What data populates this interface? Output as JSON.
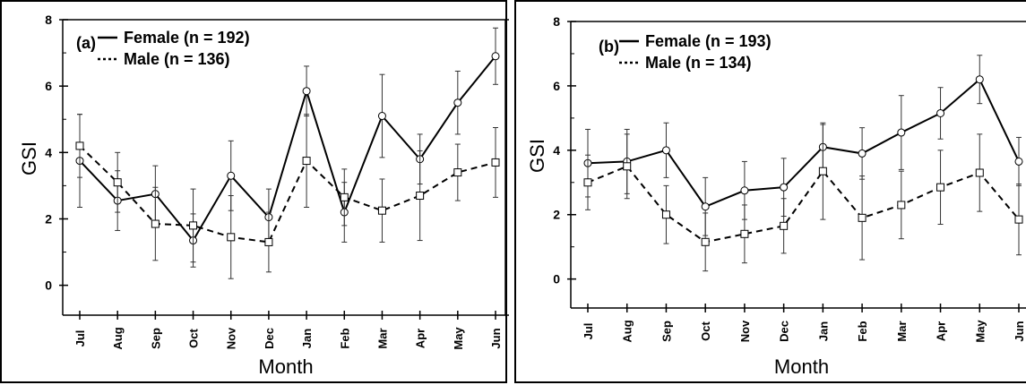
{
  "chart_data": [
    {
      "type": "line",
      "panel_label": "(a)",
      "xlabel": "Month",
      "ylabel": "GSI",
      "ylim": [
        -0.9,
        8
      ],
      "yticks": [
        0,
        2,
        4,
        6,
        8
      ],
      "categories": [
        "Jul",
        "Aug",
        "Sep",
        "Oct",
        "Nov",
        "Dec",
        "Jan",
        "Feb",
        "Mar",
        "Apr",
        "May",
        "Jun"
      ],
      "series": [
        {
          "name": "Female (n = 192)",
          "line_style": "solid",
          "marker": "circle",
          "values": [
            3.75,
            2.55,
            2.75,
            1.35,
            3.3,
            2.05,
            5.85,
            2.2,
            5.1,
            3.8,
            5.5,
            6.9
          ],
          "error": [
            1.4,
            0.9,
            0.85,
            0.8,
            1.05,
            0.85,
            0.75,
            0.9,
            1.25,
            0.75,
            0.95,
            0.85
          ]
        },
        {
          "name": "Male (n = 136)",
          "line_style": "dashed",
          "marker": "square",
          "values": [
            4.2,
            3.1,
            1.85,
            1.8,
            1.45,
            1.3,
            3.75,
            2.65,
            2.25,
            2.7,
            3.4,
            3.7
          ],
          "error": [
            0.95,
            0.9,
            1.1,
            1.1,
            1.25,
            0.9,
            1.4,
            0.85,
            0.95,
            1.35,
            0.85,
            1.05
          ]
        }
      ]
    },
    {
      "type": "line",
      "panel_label": "(b)",
      "xlabel": "Month",
      "ylabel": "GSI",
      "ylim": [
        -0.9,
        8
      ],
      "yticks": [
        0,
        2,
        4,
        6,
        8
      ],
      "categories": [
        "Jul",
        "Aug",
        "Sep",
        "Oct",
        "Nov",
        "Dec",
        "Jan",
        "Feb",
        "Mar",
        "Apr",
        "May",
        "Jun"
      ],
      "series": [
        {
          "name": "Female (n = 193)",
          "line_style": "solid",
          "marker": "circle",
          "values": [
            3.6,
            3.65,
            4.0,
            2.25,
            2.75,
            2.85,
            4.1,
            3.9,
            4.55,
            5.15,
            6.2,
            3.65
          ],
          "error": [
            1.05,
            1.0,
            0.85,
            0.9,
            0.9,
            0.9,
            0.7,
            0.8,
            1.15,
            0.8,
            0.75,
            0.75
          ]
        },
        {
          "name": "Male (n = 134)",
          "line_style": "dashed",
          "marker": "square",
          "values": [
            3.0,
            3.5,
            2.0,
            1.15,
            1.4,
            1.65,
            3.35,
            1.9,
            2.3,
            2.85,
            3.3,
            1.85
          ]
        }
      ]
    }
  ]
}
